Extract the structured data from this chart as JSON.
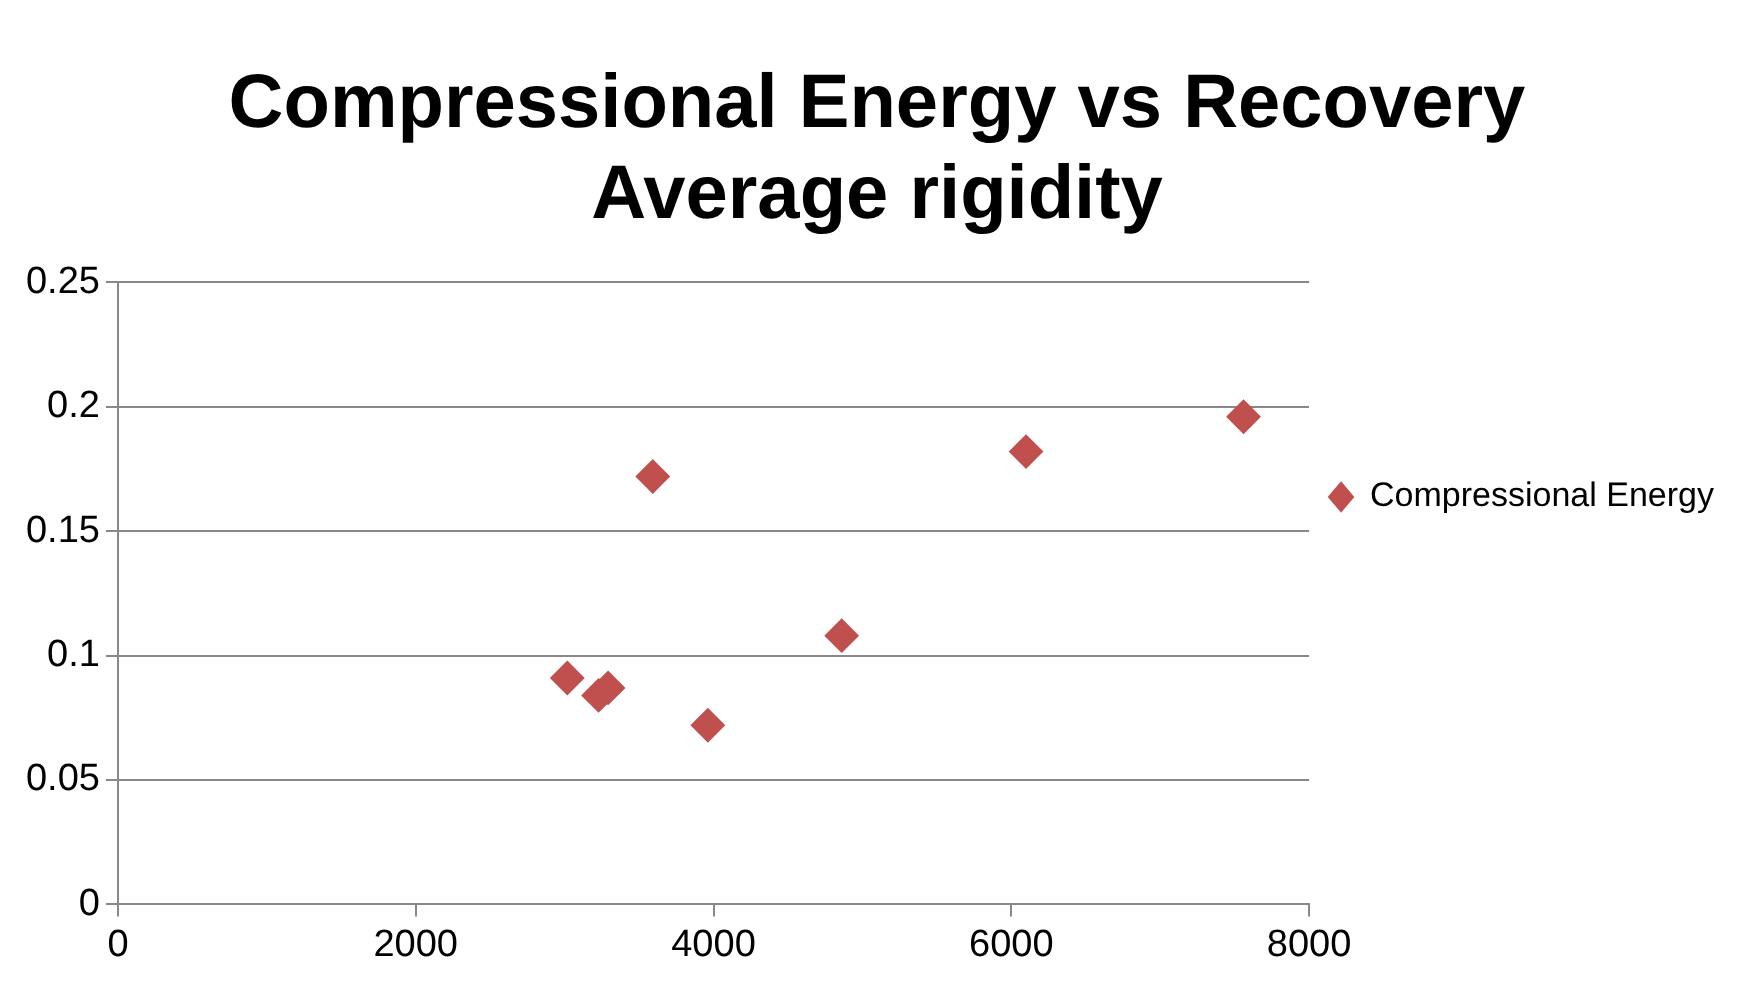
{
  "chart_data": {
    "type": "scatter",
    "title": "Compressional Energy vs Recovery Average rigidity",
    "series": [
      {
        "name": "Compressional Energy",
        "color": "#c0504d",
        "x": [
          3018,
          3228,
          3292,
          3592,
          3962,
          4861,
          6099,
          7560
        ],
        "values": [
          0.091,
          0.084,
          0.087,
          0.172,
          0.072,
          0.108,
          0.182,
          0.196
        ]
      }
    ],
    "xlim": [
      0,
      8000
    ],
    "xticks": [
      0,
      2000,
      4000,
      6000,
      8000
    ],
    "ylim": [
      0,
      0.25
    ],
    "yticks": [
      0,
      0.05,
      0.1,
      0.15,
      0.2,
      0.25
    ],
    "grid": "y",
    "legend": "right",
    "marker": "diamond"
  }
}
